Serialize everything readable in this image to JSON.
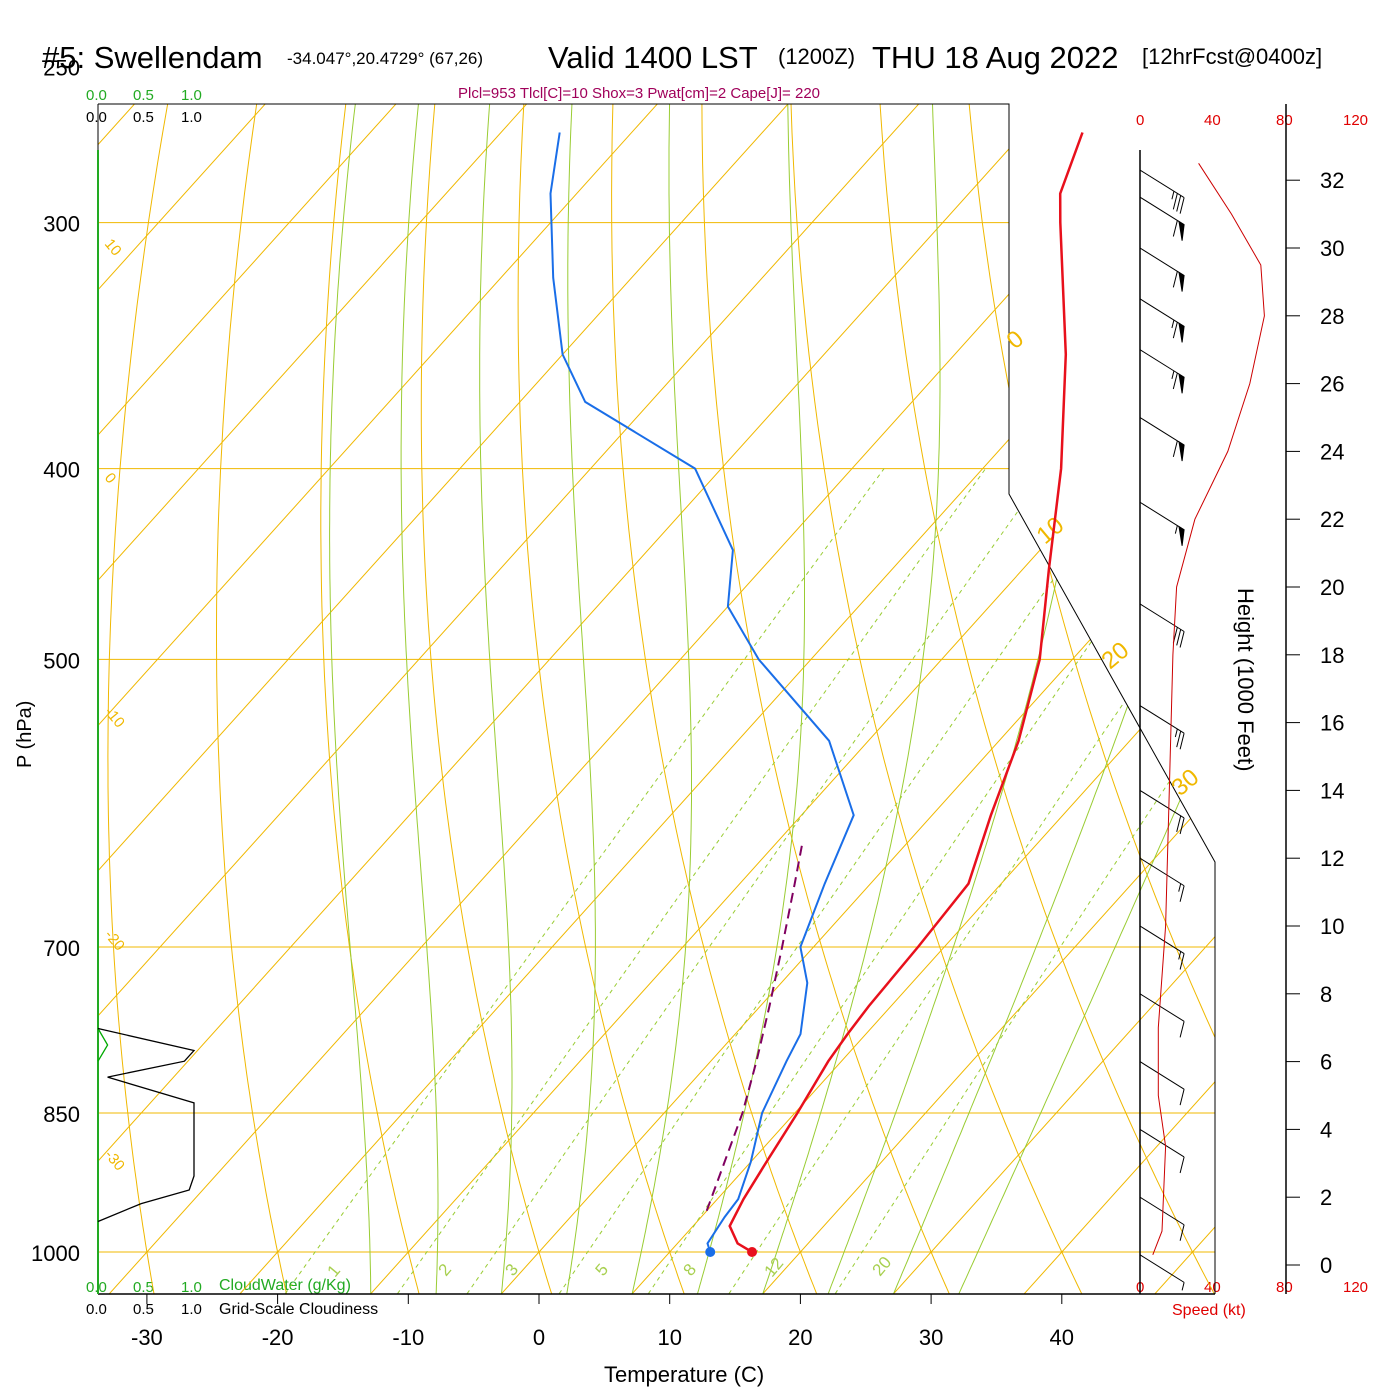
{
  "header": {
    "station": "#5: Swellendam",
    "coords": "-34.047°,20.4729° (67,26)",
    "valid": "Valid 1400 LST",
    "zulu": "(1200Z)",
    "date": "THU 18 Aug 2022",
    "forecast": "[12hrFcst@0400z]",
    "indices": "Plcl=953 Tlcl[C]=10 Shox=3 Pwat[cm]=2 Cape[J]= 220"
  },
  "cloud_scale": {
    "green_ticks": [
      "0.0",
      "0.5",
      "1.0"
    ],
    "black_ticks": [
      "0.0",
      "0.5",
      "1.0"
    ],
    "cloudwater_label": "CloudWater (g/Kg)",
    "cloudiness_label": "Grid-Scale Cloudiness"
  },
  "wind_speed_axis": {
    "ticks": [
      "0",
      "40",
      "80",
      "120"
    ],
    "label": "Speed (kt)"
  },
  "colors": {
    "isotherm": "#f0b800",
    "dry_adiabat": "#f0b800",
    "moist_adiabat": "#99cc33",
    "mixing_ratio": "#99cc33",
    "temperature": "#e8101c",
    "dewpoint": "#1a6ee8",
    "parcel": "#800060",
    "cloudwater": "#00aa00",
    "cloudiness": "#000000",
    "index_text": "#a0005a",
    "wind_speed": "#cc0000"
  },
  "chart_data": {
    "type": "skew-t",
    "xlabel": "Temperature (C)",
    "ylabel": "P (hPa)",
    "ylabel_right": "Height (1000 Feet)",
    "xlim": [
      -30,
      45
    ],
    "ylim": [
      1000,
      250
    ],
    "x_ticks": [
      "-30",
      "-20",
      "-10",
      "0",
      "10",
      "20",
      "30",
      "40"
    ],
    "pressure_ticks": [
      "250",
      "300",
      "400",
      "500",
      "700",
      "850",
      "1000"
    ],
    "height_ticks": [
      "0",
      "2",
      "4",
      "6",
      "8",
      "10",
      "12",
      "14",
      "16",
      "18",
      "20",
      "22",
      "24",
      "26",
      "28",
      "30",
      "32"
    ],
    "isotherm_labels": [
      "10",
      "0",
      "-10",
      "-20",
      "-30",
      "0",
      "10",
      "20",
      "30"
    ],
    "mixing_ratio_labels": [
      "1",
      "2",
      "3",
      "5",
      "8",
      "12",
      "20"
    ],
    "temperature_profile": [
      {
        "p": 1000,
        "t": 16.3
      },
      {
        "p": 990,
        "t": 14.6
      },
      {
        "p": 970,
        "t": 12.8
      },
      {
        "p": 940,
        "t": 12.0
      },
      {
        "p": 900,
        "t": 11.2
      },
      {
        "p": 850,
        "t": 10.2
      },
      {
        "p": 800,
        "t": 9.0
      },
      {
        "p": 775,
        "t": 8.6
      },
      {
        "p": 750,
        "t": 8.3
      },
      {
        "p": 700,
        "t": 8.0
      },
      {
        "p": 650,
        "t": 7.5
      },
      {
        "p": 600,
        "t": 4.5
      },
      {
        "p": 550,
        "t": 1.5
      },
      {
        "p": 500,
        "t": -2.5
      },
      {
        "p": 450,
        "t": -8.0
      },
      {
        "p": 400,
        "t": -14.0
      },
      {
        "p": 350,
        "t": -21.5
      },
      {
        "p": 300,
        "t": -31.0
      },
      {
        "p": 290,
        "t": -33.0
      },
      {
        "p": 270,
        "t": -35.5
      }
    ],
    "dewpoint_profile": [
      {
        "p": 1000,
        "td": 13.1
      },
      {
        "p": 990,
        "td": 12.3
      },
      {
        "p": 960,
        "td": 11.8
      },
      {
        "p": 940,
        "td": 11.6
      },
      {
        "p": 900,
        "td": 10.0
      },
      {
        "p": 850,
        "td": 7.5
      },
      {
        "p": 800,
        "td": 5.8
      },
      {
        "p": 775,
        "td": 5.0
      },
      {
        "p": 730,
        "td": 2.0
      },
      {
        "p": 700,
        "td": -1.0
      },
      {
        "p": 650,
        "td": -3.5
      },
      {
        "p": 600,
        "td": -6.0
      },
      {
        "p": 550,
        "td": -13.0
      },
      {
        "p": 500,
        "td": -24.0
      },
      {
        "p": 470,
        "td": -30.0
      },
      {
        "p": 440,
        "td": -33.5
      },
      {
        "p": 400,
        "td": -42.0
      },
      {
        "p": 370,
        "td": -55.0
      },
      {
        "p": 350,
        "td": -60.0
      },
      {
        "p": 320,
        "td": -66.0
      },
      {
        "p": 290,
        "td": -72.0
      },
      {
        "p": 270,
        "td": -75.5
      }
    ],
    "parcel_profile": [
      {
        "p": 953,
        "t": 10.0
      },
      {
        "p": 900,
        "t": 8.0
      },
      {
        "p": 850,
        "t": 6.0
      },
      {
        "p": 800,
        "t": 3.5
      },
      {
        "p": 750,
        "t": 0.7
      },
      {
        "p": 700,
        "t": -2.4
      },
      {
        "p": 650,
        "t": -5.8
      },
      {
        "p": 620,
        "t": -8.0
      }
    ],
    "surface_markers": {
      "temperature": 16.3,
      "dewpoint": 13.1
    },
    "wind_barbs": [
      {
        "height_kft": 0.3,
        "speed_kt": 8
      },
      {
        "height_kft": 2.0,
        "speed_kt": 10
      },
      {
        "height_kft": 4.0,
        "speed_kt": 12
      },
      {
        "height_kft": 6.0,
        "speed_kt": 12
      },
      {
        "height_kft": 8.0,
        "speed_kt": 12
      },
      {
        "height_kft": 10.0,
        "speed_kt": 15
      },
      {
        "height_kft": 12.0,
        "speed_kt": 18
      },
      {
        "height_kft": 14.0,
        "speed_kt": 20
      },
      {
        "height_kft": 16.5,
        "speed_kt": 25
      },
      {
        "height_kft": 19.5,
        "speed_kt": 30
      },
      {
        "height_kft": 22.5,
        "speed_kt": 55
      },
      {
        "height_kft": 25.0,
        "speed_kt": 60
      },
      {
        "height_kft": 27.0,
        "speed_kt": 65
      },
      {
        "height_kft": 28.5,
        "speed_kt": 65
      },
      {
        "height_kft": 30.0,
        "speed_kt": 60
      },
      {
        "height_kft": 31.5,
        "speed_kt": 60
      },
      {
        "height_kft": 32.3,
        "speed_kt": 35
      }
    ],
    "wind_speed_profile": [
      {
        "height_kft": 0.3,
        "speed_kt": 7
      },
      {
        "height_kft": 1.0,
        "speed_kt": 12
      },
      {
        "height_kft": 3.5,
        "speed_kt": 14
      },
      {
        "height_kft": 5.0,
        "speed_kt": 10
      },
      {
        "height_kft": 7.0,
        "speed_kt": 10
      },
      {
        "height_kft": 10.0,
        "speed_kt": 14
      },
      {
        "height_kft": 14.0,
        "speed_kt": 16
      },
      {
        "height_kft": 18.0,
        "speed_kt": 18
      },
      {
        "height_kft": 20.0,
        "speed_kt": 20
      },
      {
        "height_kft": 22.0,
        "speed_kt": 30
      },
      {
        "height_kft": 24.0,
        "speed_kt": 48
      },
      {
        "height_kft": 26.0,
        "speed_kt": 60
      },
      {
        "height_kft": 28.0,
        "speed_kt": 68
      },
      {
        "height_kft": 29.5,
        "speed_kt": 66
      },
      {
        "height_kft": 31.0,
        "speed_kt": 50
      },
      {
        "height_kft": 32.5,
        "speed_kt": 32
      }
    ],
    "cloudwater_profile": [
      {
        "p": 770,
        "v": 0.0
      },
      {
        "p": 785,
        "v": 0.1
      },
      {
        "p": 800,
        "v": 0.0
      }
    ],
    "cloudiness_profile": [
      {
        "p": 770,
        "v": 0.0
      },
      {
        "p": 790,
        "v": 1.0
      },
      {
        "p": 800,
        "v": 0.9
      },
      {
        "p": 815,
        "v": 0.1
      },
      {
        "p": 840,
        "v": 1.0
      },
      {
        "p": 915,
        "v": 1.0
      },
      {
        "p": 930,
        "v": 0.95
      },
      {
        "p": 945,
        "v": 0.45
      },
      {
        "p": 965,
        "v": 0.0
      }
    ]
  }
}
